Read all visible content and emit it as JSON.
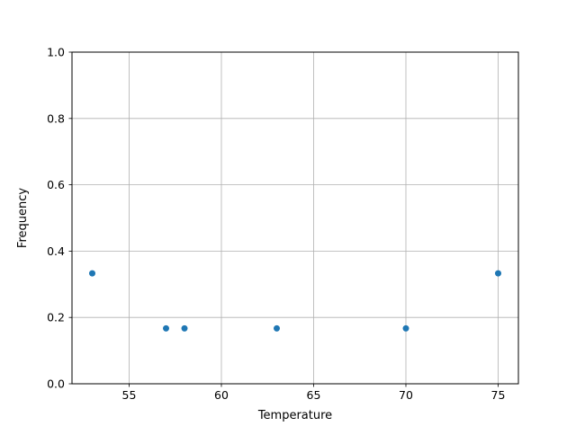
{
  "chart_data": {
    "type": "scatter",
    "title": "",
    "xlabel": "Temperature",
    "ylabel": "Frequency",
    "x": [
      53,
      57,
      58,
      63,
      70,
      75
    ],
    "y": [
      0.333,
      0.167,
      0.167,
      0.167,
      0.167,
      0.333
    ],
    "xticks": [
      55,
      60,
      65,
      70,
      75
    ],
    "xtick_labels": [
      "55",
      "60",
      "65",
      "70",
      "75"
    ],
    "yticks": [
      0.0,
      0.2,
      0.4,
      0.6,
      0.8,
      1.0
    ],
    "ytick_labels": [
      "0.0",
      "0.2",
      "0.4",
      "0.6",
      "0.8",
      "1.0"
    ],
    "xlim": [
      51.9,
      76.1
    ],
    "ylim": [
      0.0,
      1.0
    ],
    "grid": true,
    "legend": null,
    "marker_color": "#1f77b4",
    "grid_color": "#b0b0b0",
    "spine_color": "#000000",
    "background_color": "#ffffff"
  }
}
